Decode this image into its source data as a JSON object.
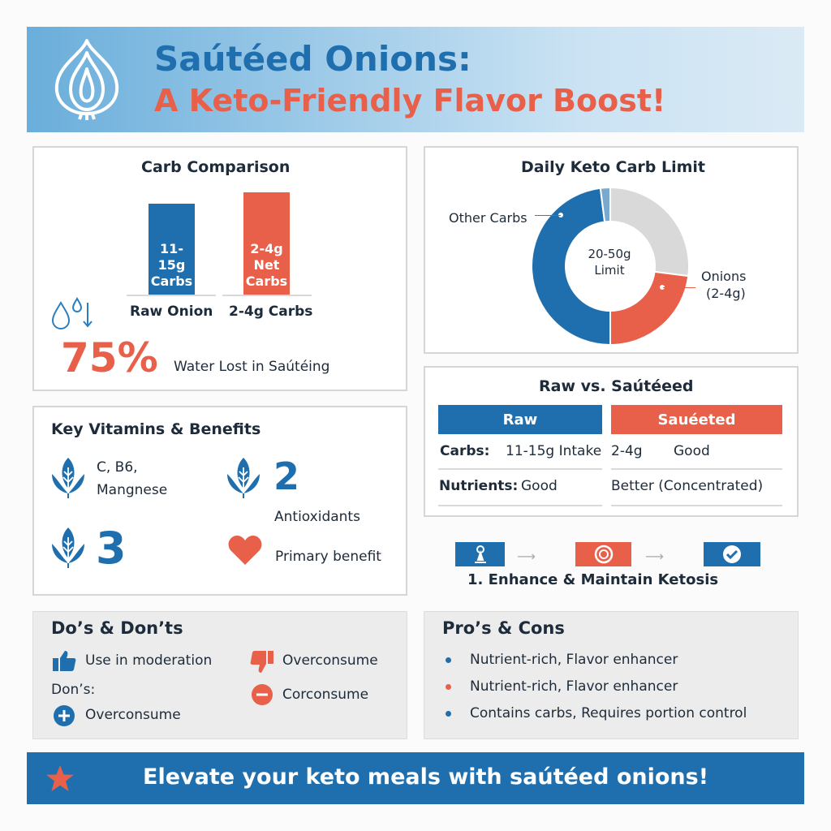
{
  "header": {
    "title_line1": "Saútéed Onions:",
    "title_line2": "A Keto-Friendly Flavor Boost!",
    "icon": "onion-icon"
  },
  "colors": {
    "blue": "#1f6fae",
    "red": "#e8604a",
    "grey": "#d9d9d9",
    "light_blue": "#7aa9cf"
  },
  "carb_comparison": {
    "title": "Carb Comparison",
    "bars": [
      {
        "label": "11-15g Carbs",
        "category": "Raw Onion",
        "color": "#1f6fae",
        "relative_height": 0.8
      },
      {
        "label": "2-4g Net Carbs",
        "category": "2-4g Carbs",
        "color": "#e8604a",
        "relative_height": 0.9
      }
    ],
    "water_icon": "water-drops-down-icon",
    "stat_value": "75%",
    "stat_label": "Water Lost in Saútéing"
  },
  "daily_limit": {
    "title": "Daily Keto Carb Limit",
    "center_line1": "20-50g",
    "center_line2": "Limit",
    "label_other": "Other Carbs",
    "label_onions_line1": "Onions",
    "label_onions_line2": "(2-4g)",
    "segments": [
      {
        "name": "grey",
        "fraction": 0.27,
        "color": "#d9d9d9"
      },
      {
        "name": "onions",
        "fraction": 0.23,
        "color": "#e8604a"
      },
      {
        "name": "other",
        "fraction": 0.48,
        "color": "#1f6fae"
      },
      {
        "name": "sliver",
        "fraction": 0.02,
        "color": "#7aa9cf"
      }
    ]
  },
  "vitamins": {
    "title": "Key Vitamins & Benefits",
    "item1_line1": "C, B6,",
    "item1_line2": "Mangnese",
    "item2_number": "2",
    "item2_label": "Antioxidants",
    "item3_number": "3",
    "item4_label": "Primary benefit"
  },
  "raw_vs": {
    "title": "Raw vs. Saútéeed",
    "col_raw": "Raw",
    "col_sauteed": "Sauéeted",
    "row1": {
      "label": "Carbs:",
      "raw": "11-15g Intake",
      "sauteed_a": "2-4g",
      "sauteed_b": "Good"
    },
    "row2": {
      "label": "Nutrients:",
      "raw": "Good",
      "sauteed": "Better (Concentrated)"
    }
  },
  "steps": {
    "caption": "1. Enhance & Maintain Ketosis",
    "icons": [
      "person-pin-icon",
      "target-icon",
      "check-circle-icon"
    ]
  },
  "dos": {
    "title": "Do’s & Don’ts",
    "do1": "Use in moderation",
    "donts_label": "Don’s:",
    "do2": "Overconsume",
    "dont1": "Overconsume",
    "dont2": "Corconsume"
  },
  "pros": {
    "title": "Pro’s & Cons",
    "items": [
      {
        "text": "Nutrient-rich, Flavor enhancer",
        "color": "#1f6fae"
      },
      {
        "text": "Nutrient-rich, Flavor enhancer",
        "color": "#e8604a"
      },
      {
        "text": "Contains carbs, Requires portion control",
        "color": "#1f6fae"
      }
    ]
  },
  "footer": {
    "text": "Elevate your keto meals with saútéed onions!",
    "icon": "star-icon"
  }
}
